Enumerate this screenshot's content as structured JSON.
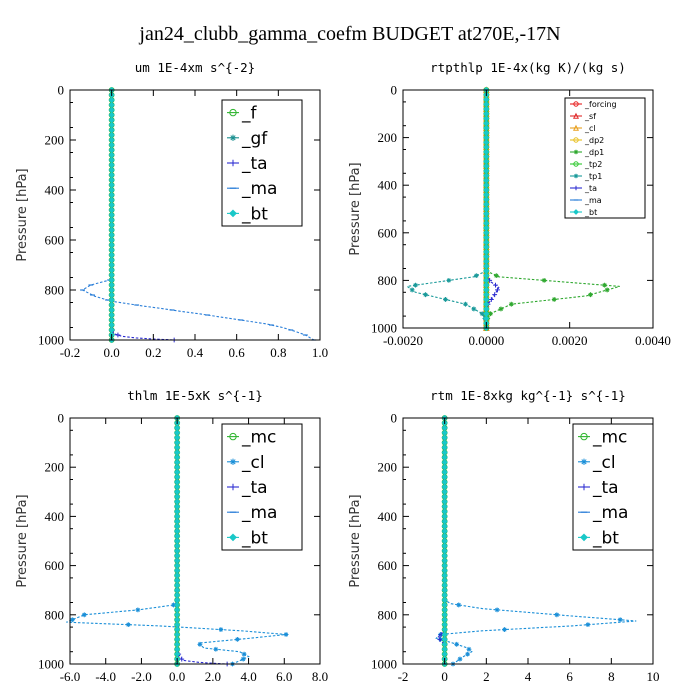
{
  "title": "jan24_clubb_gamma_coefm  BUDGET at270E,-17N",
  "chart_data": [
    {
      "type": "line",
      "title": "um  1E-4xm s^{-2}",
      "ylabel": "Pressure [hPa]",
      "xlim": [
        -0.2,
        1.0
      ],
      "ylim": [
        1000,
        0
      ],
      "xticks": [
        -0.2,
        0.0,
        0.2,
        0.4,
        0.6,
        0.8,
        1.0
      ],
      "xtick_labels": [
        "-0.2",
        "0.0",
        "0.2",
        "0.4",
        "0.6",
        "0.8",
        "1.0"
      ],
      "yticks": [
        0,
        200,
        400,
        600,
        800,
        1000
      ],
      "ytick_labels": [
        "0",
        "200",
        "400",
        "600",
        "800",
        "1000"
      ],
      "legend_position": "top-right",
      "series": [
        {
          "name": "_f",
          "color": "#2fb52f",
          "marker": "circle",
          "x": [
            0.0,
            0.0
          ],
          "y": [
            0,
            1000
          ]
        },
        {
          "name": "_gf",
          "color": "#1a8f8f",
          "marker": "star",
          "x": [
            0.0,
            0.0
          ],
          "y": [
            0,
            1000
          ]
        },
        {
          "name": "_ta",
          "color": "#2a2ad0",
          "marker": "plus",
          "x": [
            0,
            0,
            0,
            0,
            0.01,
            0.05,
            0.12,
            0.2,
            0.3
          ],
          "y": [
            0,
            600,
            900,
            950,
            975,
            985,
            992,
            996,
            1000
          ]
        },
        {
          "name": "_ma",
          "color": "#2a7ed8",
          "marker": "dash",
          "x": [
            0,
            0,
            0,
            -0.01,
            -0.1,
            -0.14,
            -0.08,
            0.0,
            0.08,
            0.16,
            0.25,
            0.33,
            0.42,
            0.5,
            0.58,
            0.66,
            0.74,
            0.82,
            0.88,
            0.93,
            0.97
          ],
          "y": [
            0,
            600,
            740,
            760,
            780,
            800,
            825,
            845,
            855,
            865,
            875,
            885,
            895,
            905,
            915,
            925,
            935,
            950,
            965,
            980,
            1000
          ]
        },
        {
          "name": "_bt",
          "color": "#19c8c8",
          "marker": "diamond",
          "x": [
            0.0,
            0.0
          ],
          "y": [
            0,
            1000
          ]
        }
      ]
    },
    {
      "type": "line",
      "title": "rtpthlp  1E-4x(kg K)/(kg s)",
      "ylabel": "Pressure [hPa]",
      "xlim": [
        -0.002,
        0.004
      ],
      "ylim": [
        1000,
        0
      ],
      "xticks": [
        -0.002,
        0.0,
        0.002,
        0.004
      ],
      "xtick_labels": [
        "-0.0020",
        "0.0000",
        "0.0020",
        "0.0040"
      ],
      "yticks": [
        0,
        200,
        400,
        600,
        800,
        1000
      ],
      "ytick_labels": [
        "0",
        "200",
        "400",
        "600",
        "800",
        "1000"
      ],
      "legend_position": "top-right",
      "series": [
        {
          "name": "_forcing",
          "color": "#e82020",
          "marker": "circle",
          "x": [
            0.0,
            0.0
          ],
          "y": [
            0,
            1000
          ]
        },
        {
          "name": "_sf",
          "color": "#e02a2a",
          "marker": "triangle",
          "x": [
            0.0,
            0.0
          ],
          "y": [
            0,
            1000
          ]
        },
        {
          "name": "_cl",
          "color": "#e8a020",
          "marker": "triangle",
          "x": [
            0.0,
            0.0
          ],
          "y": [
            0,
            1000
          ]
        },
        {
          "name": "_dp2",
          "color": "#e8c020",
          "marker": "circle",
          "x": [
            0.0,
            0.0
          ],
          "y": [
            0,
            1000
          ]
        },
        {
          "name": "_dp1",
          "color": "#2fa82f",
          "marker": "star",
          "x": [
            0,
            0,
            0.0003,
            0.0032,
            0.0024,
            0.0006,
            0.0001,
            0,
            0
          ],
          "y": [
            0,
            760,
            785,
            825,
            865,
            900,
            940,
            970,
            1000
          ]
        },
        {
          "name": "_tp2",
          "color": "#2fc82f",
          "marker": "circle",
          "x": [
            0.0,
            0.0
          ],
          "y": [
            0,
            1000
          ]
        },
        {
          "name": "_tp1",
          "color": "#1a9a9a",
          "marker": "star",
          "x": [
            0,
            0,
            -0.0003,
            -0.0019,
            -0.0017,
            -0.0005,
            -0.0001,
            0,
            0
          ],
          "y": [
            0,
            760,
            785,
            825,
            850,
            900,
            940,
            970,
            1000
          ]
        },
        {
          "name": "_ta",
          "color": "#2a2ad0",
          "marker": "plus",
          "x": [
            0,
            0,
            0.0001,
            0.0003,
            0.0002,
            0,
            0
          ],
          "y": [
            0,
            780,
            805,
            830,
            860,
            910,
            1000
          ]
        },
        {
          "name": "_ma",
          "color": "#2a7ed8",
          "marker": "dash",
          "x": [
            0.0,
            0.0
          ],
          "y": [
            0,
            1000
          ]
        },
        {
          "name": "_bt",
          "color": "#19c8c8",
          "marker": "diamond",
          "x": [
            0.0,
            0.0
          ],
          "y": [
            0,
            1000
          ]
        }
      ]
    },
    {
      "type": "line",
      "title": "thlm  1E-5xK s^{-1}",
      "ylabel": "Pressure [hPa]",
      "xlim": [
        -6.0,
        8.0
      ],
      "ylim": [
        1000,
        0
      ],
      "xticks": [
        -6,
        -4,
        -2,
        0,
        2,
        4,
        6,
        8
      ],
      "xtick_labels": [
        "-6.0",
        "-4.0",
        "-2.0",
        "0.0",
        "2.0",
        "4.0",
        "6.0",
        "8.0"
      ],
      "yticks": [
        0,
        200,
        400,
        600,
        800,
        1000
      ],
      "ytick_labels": [
        "0",
        "200",
        "400",
        "600",
        "800",
        "1000"
      ],
      "legend_position": "top-right",
      "series": [
        {
          "name": "_mc",
          "color": "#2fb52f",
          "marker": "circle",
          "x": [
            0.0,
            0.0
          ],
          "y": [
            0,
            1000
          ]
        },
        {
          "name": "_cl",
          "color": "#1a8fd8",
          "marker": "star",
          "x": [
            0,
            0,
            -0.2,
            -2.2,
            -5.2,
            -6.2,
            -1.0,
            3.6,
            6.1,
            4.1,
            1.2,
            1.5,
            3.5,
            4.0,
            3.1
          ],
          "y": [
            0,
            750,
            760,
            780,
            800,
            830,
            845,
            865,
            880,
            895,
            915,
            935,
            950,
            970,
            1000
          ]
        },
        {
          "name": "_ta",
          "color": "#2a2ad0",
          "marker": "plus",
          "x": [
            0,
            0,
            0.3,
            1.2,
            2.0,
            2.8
          ],
          "y": [
            0,
            950,
            985,
            993,
            997,
            1000
          ]
        },
        {
          "name": "_ma",
          "color": "#2a7ed8",
          "marker": "dash",
          "x": [
            0.0,
            0.0
          ],
          "y": [
            0,
            1000
          ]
        },
        {
          "name": "_bt",
          "color": "#19c8c8",
          "marker": "diamond",
          "x": [
            0.0,
            0.0
          ],
          "y": [
            0,
            1000
          ]
        }
      ]
    },
    {
      "type": "line",
      "title": "rtm  1E-8xkg kg^{-1} s^{-1}",
      "ylabel": "Pressure [hPa]",
      "xlim": [
        -2,
        10
      ],
      "ylim": [
        1000,
        0
      ],
      "xticks": [
        -2,
        0,
        2,
        4,
        6,
        8,
        10
      ],
      "xtick_labels": [
        "-2",
        "0",
        "2",
        "4",
        "6",
        "8",
        "10"
      ],
      "yticks": [
        0,
        200,
        400,
        600,
        800,
        1000
      ],
      "ytick_labels": [
        "0",
        "200",
        "400",
        "600",
        "800",
        "1000"
      ],
      "legend_position": "top-right",
      "series": [
        {
          "name": "_mc",
          "color": "#2fb52f",
          "marker": "circle",
          "x": [
            0.0,
            0.0
          ],
          "y": [
            0,
            1000
          ]
        },
        {
          "name": "_cl",
          "color": "#1a8fd8",
          "marker": "star",
          "x": [
            0,
            0,
            0.3,
            1.8,
            6.1,
            9.2,
            6.1,
            1.8,
            -0.2,
            -0.4,
            0.4,
            1.1,
            1.3,
            0.9,
            0.4
          ],
          "y": [
            0,
            740,
            755,
            775,
            805,
            825,
            845,
            865,
            880,
            895,
            915,
            935,
            950,
            970,
            1000
          ]
        },
        {
          "name": "_ta",
          "color": "#2a2ad0",
          "marker": "plus",
          "x": [
            0,
            0,
            -0.1,
            -0.3,
            -0.2,
            0
          ],
          "y": [
            0,
            860,
            875,
            890,
            905,
            920
          ]
        },
        {
          "name": "_ma",
          "color": "#2a7ed8",
          "marker": "dash",
          "x": [
            0.0,
            0.0
          ],
          "y": [
            0,
            1000
          ]
        },
        {
          "name": "_bt",
          "color": "#19c8c8",
          "marker": "diamond",
          "x": [
            0.0,
            0.0
          ],
          "y": [
            0,
            1000
          ]
        }
      ]
    }
  ]
}
